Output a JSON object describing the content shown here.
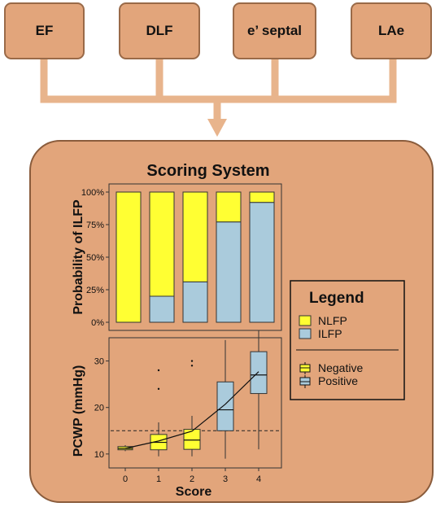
{
  "inputs": [
    "EF",
    "DLF",
    "e’ septal",
    "LAe"
  ],
  "panel_title": "Scoring System",
  "colors": {
    "nlfp": "#ffff33",
    "ilfp": "#aacbdc",
    "box_fill": "#e2a57b",
    "box_border": "#9a6a48",
    "arrow": "#e8b48c"
  },
  "legend": {
    "title": "Legend",
    "nlfp_label": "NLFP",
    "ilfp_label": "ILFP",
    "negative_label": "Negative",
    "positive_label": "Positive"
  },
  "chart_data": [
    {
      "type": "bar",
      "stacked": true,
      "categories": [
        "0",
        "1",
        "2",
        "3",
        "4"
      ],
      "series": [
        {
          "name": "ILFP",
          "values": [
            0,
            20,
            31,
            77,
            92
          ]
        },
        {
          "name": "NLFP",
          "values": [
            100,
            80,
            69,
            23,
            8
          ]
        }
      ],
      "ylabel": "Probability of ILFP",
      "ylim": [
        0,
        100
      ],
      "yticks": [
        "0%",
        "25%",
        "50%",
        "75%",
        "100%"
      ]
    },
    {
      "type": "box",
      "categories": [
        "0",
        "1",
        "2",
        "3",
        "4"
      ],
      "xlabel": "Score",
      "ylabel": "PCWP (mmHg)",
      "ylim": [
        7,
        35
      ],
      "yticks": [
        "10",
        "20",
        "30"
      ],
      "reference_line": 15,
      "boxes": [
        {
          "score": "0",
          "group": "Negative",
          "min": 10.6,
          "q1": 10.9,
          "median": 11.2,
          "q3": 11.6,
          "max": 11.9,
          "outliers": []
        },
        {
          "score": "1",
          "group": "Negative",
          "min": 9.5,
          "q1": 10.9,
          "median": 12.5,
          "q3": 14.2,
          "max": 16.8,
          "outliers": [
            24,
            28
          ]
        },
        {
          "score": "2",
          "group": "Negative",
          "min": 9.5,
          "q1": 11.0,
          "median": 13.0,
          "q3": 15.3,
          "max": 18.2,
          "outliers": [
            29,
            30
          ]
        },
        {
          "score": "3",
          "group": "Positive",
          "min": 9.0,
          "q1": 15.0,
          "median": 19.5,
          "q3": 25.5,
          "max": 34.5,
          "outliers": []
        },
        {
          "score": "4",
          "group": "Positive",
          "min": 11.0,
          "q1": 23.0,
          "median": 27.0,
          "q3": 32.0,
          "max": 36.5,
          "outliers": []
        }
      ],
      "mean_line": [
        11.2,
        12.8,
        14.9,
        20.7,
        27.7
      ]
    }
  ]
}
